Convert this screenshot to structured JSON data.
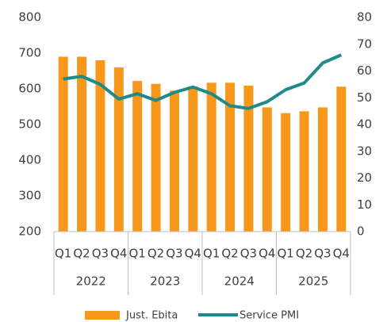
{
  "chart_data": {
    "type": "bar",
    "categories": [
      "Q1",
      "Q2",
      "Q3",
      "Q4",
      "Q1",
      "Q2",
      "Q3",
      "Q4",
      "Q1",
      "Q2",
      "Q3",
      "Q4",
      "Q1",
      "Q2",
      "Q3",
      "Q4"
    ],
    "groups": [
      "2022",
      "2023",
      "2024",
      "2025"
    ],
    "series": [
      {
        "name": "Just. Ebita",
        "type": "bar",
        "color": "#f7981d",
        "values": [
          690,
          690,
          680,
          660,
          622,
          614,
          595,
          607,
          617,
          617,
          609,
          548,
          532,
          537,
          548,
          606
        ]
      },
      {
        "name": "Service PMI",
        "type": "line",
        "axis": "y2",
        "color": "#1f8a8a",
        "values": [
          57,
          58,
          55,
          49.5,
          51.5,
          49,
          52,
          54,
          51.5,
          47,
          46,
          48.5,
          53,
          55.5,
          63,
          66
        ]
      }
    ],
    "ylim": [
      200,
      800
    ],
    "yticks": [
      200,
      300,
      400,
      500,
      600,
      700,
      800
    ],
    "y2lim": [
      0,
      80
    ],
    "y2ticks": [
      0,
      10,
      20,
      30,
      40,
      50,
      60,
      70,
      80
    ],
    "legend": "bottom"
  }
}
